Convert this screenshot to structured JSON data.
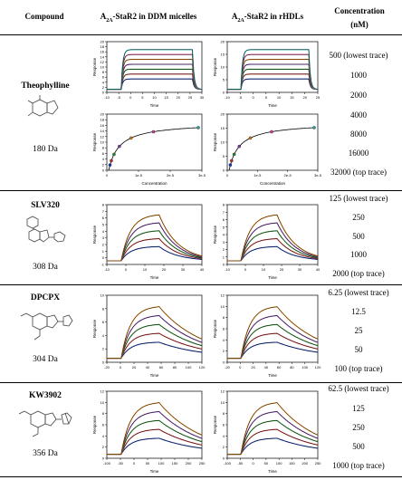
{
  "header": {
    "compound": "Compound",
    "ddm_prefix": "A",
    "ddm_sub": "2A",
    "ddm_suffix": "-StaR2 in DDM micelles",
    "hdl_prefix": "A",
    "hdl_sub": "2A",
    "hdl_suffix": "-StaR2 in rHDLs",
    "concentration": "Concentration",
    "unit": "(nM)"
  },
  "rows": [
    {
      "name": "Theophylline",
      "mass": "180 Da",
      "concentrations": [
        "500 (lowest trace)",
        "1000",
        "2000",
        "4000",
        "8000",
        "16000",
        "32000 (top trace)"
      ]
    },
    {
      "name": "SLV320",
      "mass": "308 Da",
      "concentrations": [
        "125 (lowest trace)",
        "250",
        "500",
        "1000",
        "2000 (top trace)"
      ]
    },
    {
      "name": "DPCPX",
      "mass": "304 Da",
      "concentrations": [
        "6.25 (lowest trace)",
        "12.5",
        "25",
        "50",
        "100 (top trace)"
      ]
    },
    {
      "name": "KW3902",
      "mass": "356 Da",
      "concentrations": [
        "62.5 (lowest trace)",
        "125",
        "250",
        "500",
        "1000 (top trace)"
      ]
    }
  ],
  "axes": {
    "response": "Response",
    "time": "Time",
    "concentration": "Concentration"
  },
  "chart_data": [
    {
      "type": "line",
      "panel": "theophylline-ddm-sensorgram",
      "xlabel": "Time",
      "ylabel": "Response",
      "xticks": [
        "-10",
        "-5",
        "0",
        "5",
        "10",
        "15",
        "20",
        "25",
        "30"
      ],
      "yticks": [
        "0",
        "2",
        "4",
        "6",
        "8",
        "10",
        "12",
        "14",
        "16",
        "18",
        "20"
      ]
    },
    {
      "type": "line",
      "panel": "theophylline-rhdl-sensorgram",
      "xlabel": "Time",
      "ylabel": "Response",
      "xticks": [
        "-10",
        "-5",
        "0",
        "5",
        "10",
        "15",
        "20",
        "25"
      ],
      "yticks": [
        "0",
        "5",
        "10",
        "15",
        "20"
      ]
    },
    {
      "type": "scatter",
      "panel": "theophylline-ddm-isotherm",
      "xlabel": "Concentration",
      "ylabel": "Response",
      "xticks": [
        "0",
        "1e-5",
        "2e-5",
        "3e-5"
      ],
      "yticks": [
        "0",
        "2",
        "4",
        "6",
        "8",
        "10",
        "12",
        "14",
        "16",
        "18",
        "20"
      ]
    },
    {
      "type": "scatter",
      "panel": "theophylline-rhdl-isotherm",
      "xlabel": "Concentration",
      "ylabel": "Response",
      "xticks": [
        "0",
        "1e-5",
        "2e-5",
        "3e-5"
      ],
      "yticks": [
        "0",
        "5",
        "10",
        "15",
        "20"
      ]
    },
    {
      "type": "line",
      "panel": "slv320-ddm-sensorgram",
      "xlabel": "Time",
      "ylabel": "Response",
      "xticks": [
        "-10",
        "0",
        "10",
        "20",
        "30",
        "40"
      ],
      "yticks": [
        "-1",
        "0",
        "1",
        "2",
        "3",
        "4",
        "5",
        "6",
        "7",
        "8"
      ]
    },
    {
      "type": "line",
      "panel": "slv320-rhdl-sensorgram",
      "xlabel": "Time",
      "ylabel": "Response",
      "xticks": [
        "-10",
        "0",
        "10",
        "20",
        "30",
        "40"
      ],
      "yticks": [
        "0",
        "1",
        "2",
        "3",
        "4",
        "5",
        "6",
        "7",
        "8"
      ]
    },
    {
      "type": "line",
      "panel": "dpcpx-ddm-sensorgram",
      "xlabel": "Time",
      "ylabel": "Response",
      "xticks": [
        "-20",
        "0",
        "20",
        "40",
        "60",
        "80",
        "100",
        "120"
      ],
      "yticks": [
        "0",
        "2",
        "4",
        "6",
        "8",
        "10"
      ]
    },
    {
      "type": "line",
      "panel": "dpcpx-rhdl-sensorgram",
      "xlabel": "Time",
      "ylabel": "Response",
      "xticks": [
        "-20",
        "0",
        "20",
        "40",
        "60",
        "80",
        "100",
        "120"
      ],
      "yticks": [
        "0",
        "2",
        "4",
        "6",
        "8",
        "10",
        "12"
      ]
    },
    {
      "type": "line",
      "panel": "kw3902-ddm-sensorgram",
      "xlabel": "Time",
      "ylabel": "Response",
      "xticks": [
        "-100",
        "-50",
        "0",
        "50",
        "100",
        "150",
        "200",
        "250"
      ],
      "yticks": [
        "0",
        "2",
        "4",
        "6",
        "8",
        "10",
        "12"
      ]
    },
    {
      "type": "line",
      "panel": "kw3902-rhdl-sensorgram",
      "xlabel": "Time",
      "ylabel": "Response",
      "xticks": [
        "-100",
        "-50",
        "0",
        "50",
        "100",
        "150",
        "200",
        "250"
      ],
      "yticks": [
        "0",
        "2",
        "4",
        "6",
        "8",
        "10",
        "12"
      ]
    }
  ]
}
